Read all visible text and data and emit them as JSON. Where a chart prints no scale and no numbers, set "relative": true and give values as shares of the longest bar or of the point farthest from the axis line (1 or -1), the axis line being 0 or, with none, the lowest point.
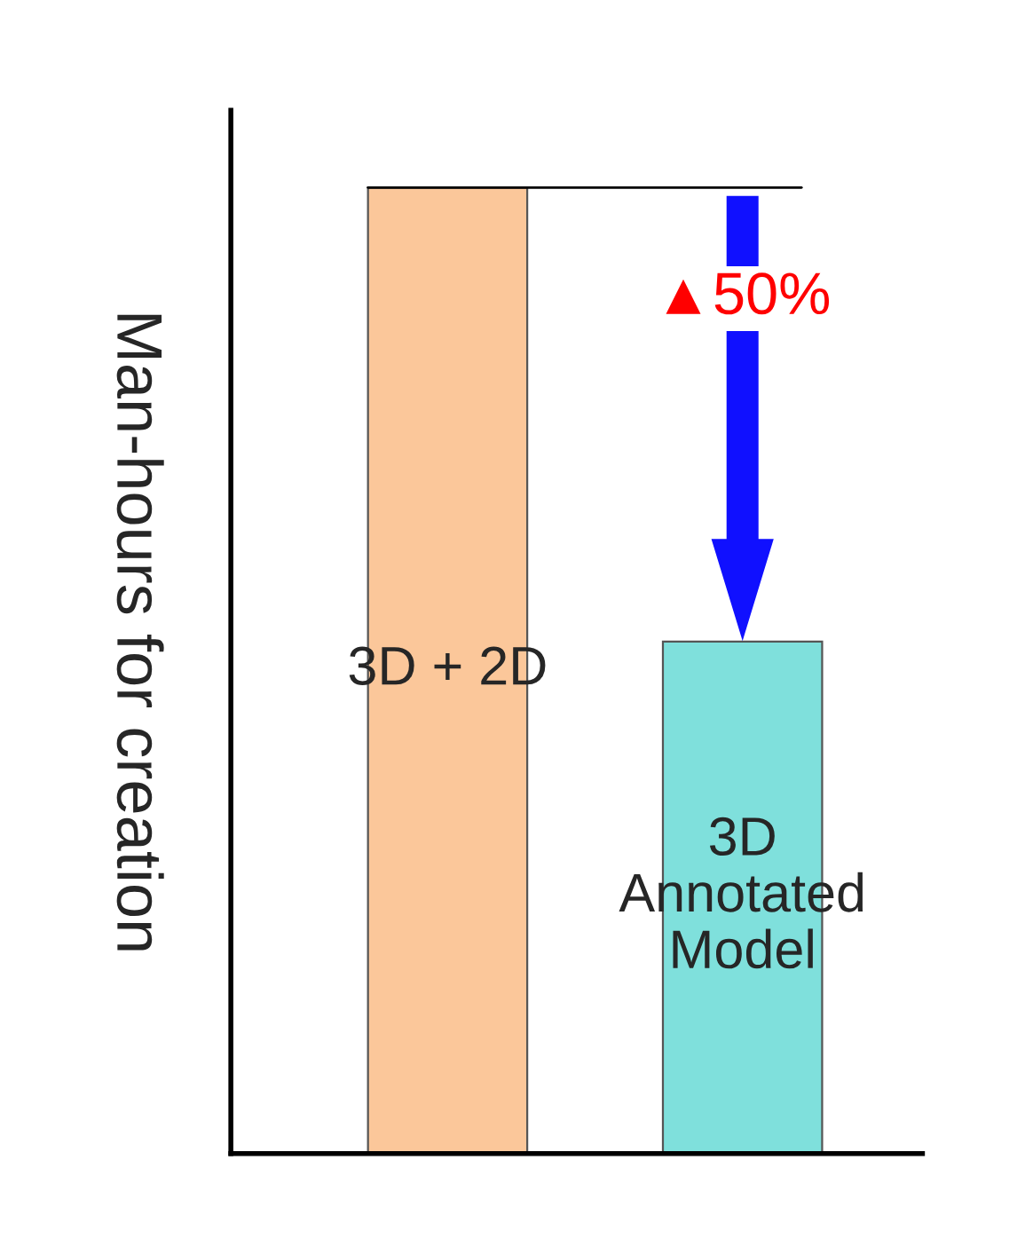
{
  "chart_data": {
    "type": "bar",
    "relative": true,
    "ylabel": "Man-hours for creation",
    "categories": [
      "3D + 2D",
      "3D\nAnnotated\nModel"
    ],
    "values": [
      1,
      0.53
    ],
    "colors": [
      "#fbc79a",
      "#7fe0dc"
    ],
    "ref_lines": [
      {
        "axis": "y",
        "value": 1,
        "label": null,
        "color": "#000000"
      }
    ],
    "annotations": [
      "▲50%"
    ]
  }
}
